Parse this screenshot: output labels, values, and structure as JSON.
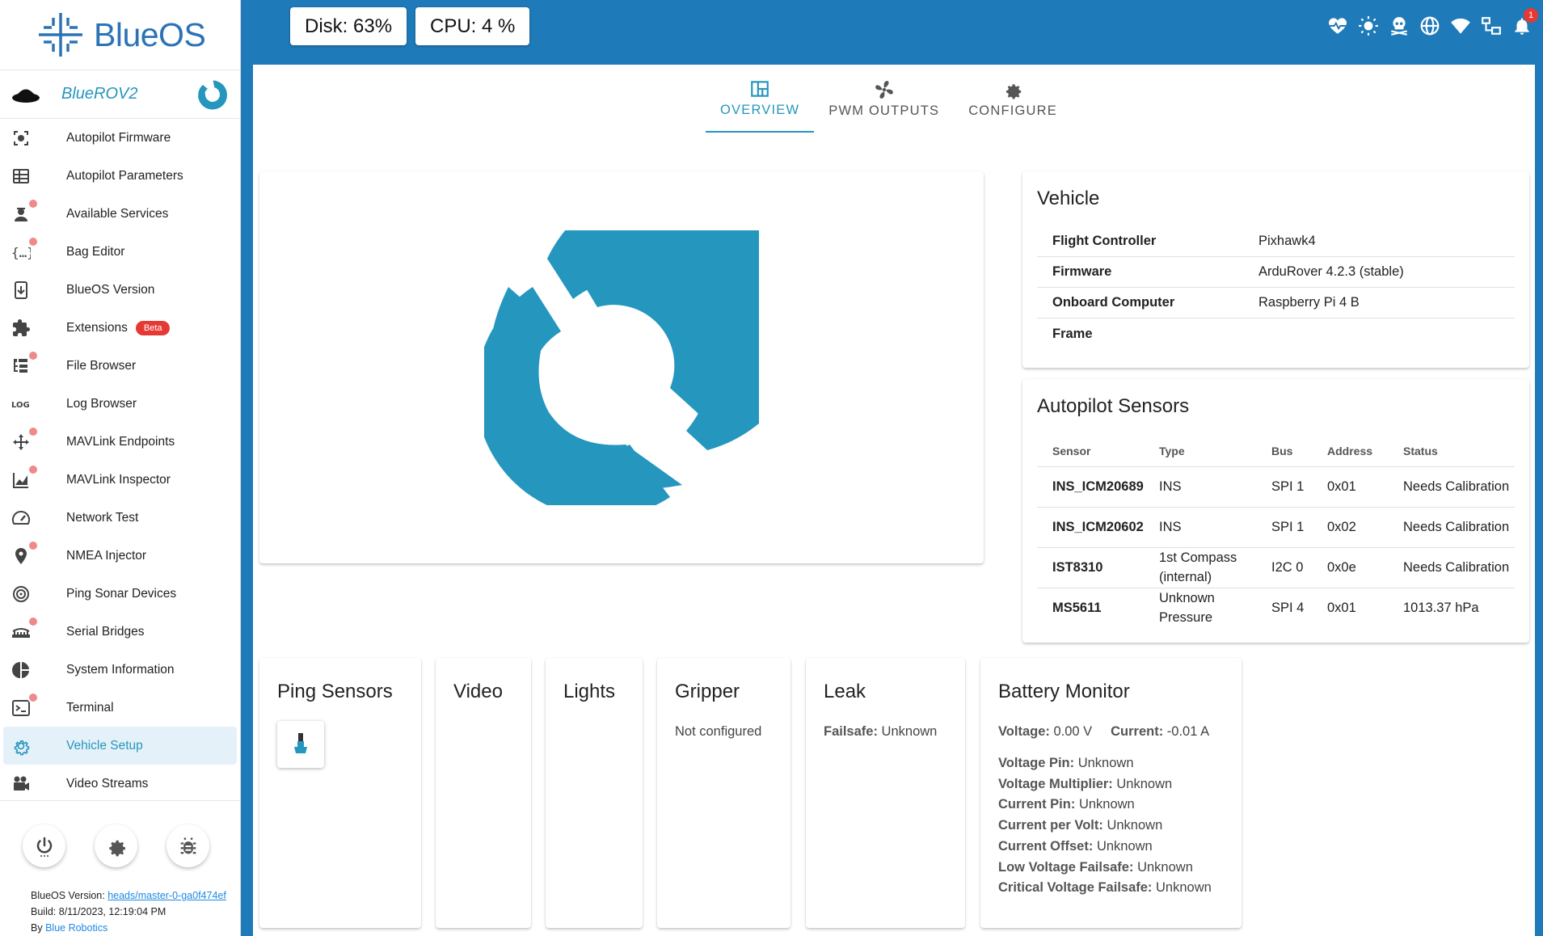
{
  "brand": {
    "name": "BlueOS"
  },
  "vehicle": {
    "name": "BlueROV2"
  },
  "sidebar": {
    "items": [
      {
        "label": "Autopilot Firmware",
        "icon": "chip-target-icon",
        "alert": false
      },
      {
        "label": "Autopilot Parameters",
        "icon": "table-icon",
        "alert": false
      },
      {
        "label": "Available Services",
        "icon": "worker-icon",
        "alert": true
      },
      {
        "label": "Bag Editor",
        "icon": "braces-icon",
        "alert": true
      },
      {
        "label": "BlueOS Version",
        "icon": "download-icon",
        "alert": false
      },
      {
        "label": "Extensions",
        "icon": "puzzle-icon",
        "alert": false,
        "badge": "Beta"
      },
      {
        "label": "File Browser",
        "icon": "file-tree-icon",
        "alert": true
      },
      {
        "label": "Log Browser",
        "icon": "log-icon",
        "alert": false
      },
      {
        "label": "MAVLink Endpoints",
        "icon": "arrows-icon",
        "alert": true
      },
      {
        "label": "MAVLink Inspector",
        "icon": "chart-area-icon",
        "alert": true
      },
      {
        "label": "Network Test",
        "icon": "speedometer-icon",
        "alert": false
      },
      {
        "label": "NMEA Injector",
        "icon": "map-marker-icon",
        "alert": true
      },
      {
        "label": "Ping Sonar Devices",
        "icon": "sonar-icon",
        "alert": false
      },
      {
        "label": "Serial Bridges",
        "icon": "bridge-icon",
        "alert": true
      },
      {
        "label": "System Information",
        "icon": "pie-chart-icon",
        "alert": false
      },
      {
        "label": "Terminal",
        "icon": "terminal-icon",
        "alert": true
      },
      {
        "label": "Vehicle Setup",
        "icon": "gear-icon",
        "alert": false,
        "active": true
      },
      {
        "label": "Video Streams",
        "icon": "video-camera-icon",
        "alert": false
      }
    ]
  },
  "footer": {
    "version_label": "BlueOS Version:",
    "version_value": "heads/master-0-ga0f474ef",
    "build": "Build: 8/11/2023, 12:19:04 PM",
    "by_label": "By",
    "by_value": "Blue Robotics"
  },
  "header": {
    "disk": "Disk: 63%",
    "cpu": "CPU: 4 %",
    "notification_count": "1",
    "icons": [
      "heart-pulse-icon",
      "brightness-icon",
      "skull-icon",
      "globe-icon",
      "wifi-icon",
      "network-icon",
      "bell-icon"
    ]
  },
  "tabs": [
    {
      "label": "OVERVIEW",
      "active": true
    },
    {
      "label": "PWM OUTPUTS",
      "active": false
    },
    {
      "label": "CONFIGURE",
      "active": false
    }
  ],
  "vehicle_info": {
    "title": "Vehicle",
    "rows": [
      {
        "key": "Flight Controller",
        "value": "Pixhawk4"
      },
      {
        "key": "Firmware",
        "value": "ArduRover 4.2.3 (stable)"
      },
      {
        "key": "Onboard Computer",
        "value": "Raspberry Pi 4 B"
      },
      {
        "key": "Frame",
        "value": ""
      }
    ]
  },
  "sensors": {
    "title": "Autopilot Sensors",
    "headers": [
      "Sensor",
      "Type",
      "Bus",
      "Address",
      "Status"
    ],
    "rows": [
      [
        "INS_ICM20689",
        "INS",
        "SPI 1",
        "0x01",
        "Needs Calibration"
      ],
      [
        "INS_ICM20602",
        "INS",
        "SPI 1",
        "0x02",
        "Needs Calibration"
      ],
      [
        "IST8310",
        "1st Compass (internal)",
        "I2C 0",
        "0x0e",
        "Needs Calibration"
      ],
      [
        "MS5611",
        "Unknown Pressure",
        "SPI 4",
        "0x01",
        "1013.37 hPa"
      ]
    ]
  },
  "cards": {
    "ping": {
      "title": "Ping Sensors"
    },
    "video": {
      "title": "Video"
    },
    "lights": {
      "title": "Lights"
    },
    "gripper": {
      "title": "Gripper",
      "text": "Not configured"
    },
    "leak": {
      "title": "Leak",
      "failsafe_label": "Failsafe:",
      "failsafe_value": "Unknown"
    },
    "battery": {
      "title": "Battery Monitor",
      "voltage_label": "Voltage:",
      "voltage_value": "0.00 V",
      "current_label": "Current:",
      "current_value": "-0.01 A",
      "rows": [
        {
          "label": "Voltage Pin:",
          "value": "Unknown"
        },
        {
          "label": "Voltage Multiplier:",
          "value": "Unknown"
        },
        {
          "label": "Current Pin:",
          "value": "Unknown"
        },
        {
          "label": "Current per Volt:",
          "value": "Unknown"
        },
        {
          "label": "Current Offset:",
          "value": "Unknown"
        },
        {
          "label": "Low Voltage Failsafe:",
          "value": "Unknown"
        },
        {
          "label": "Critical Voltage Failsafe:",
          "value": "Unknown"
        }
      ]
    }
  },
  "colors": {
    "accent": "#2596be",
    "header": "#1e7ab8",
    "brand": "#2b73b6",
    "alert": "#e53935"
  }
}
